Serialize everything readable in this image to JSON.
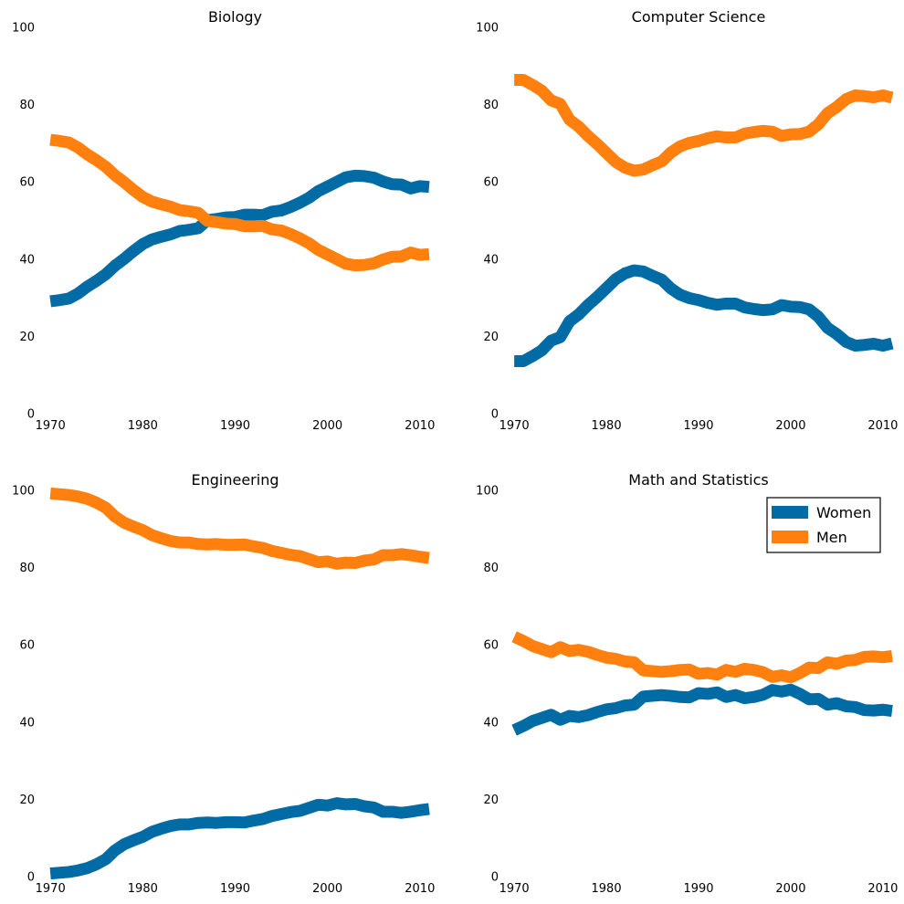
{
  "chart_data": [
    {
      "type": "line",
      "title": "Biology",
      "x": [
        1970,
        1971,
        1972,
        1973,
        1974,
        1975,
        1976,
        1977,
        1978,
        1979,
        1980,
        1981,
        1982,
        1983,
        1984,
        1985,
        1986,
        1987,
        1988,
        1989,
        1990,
        1991,
        1992,
        1993,
        1994,
        1995,
        1996,
        1997,
        1998,
        1999,
        2000,
        2001,
        2002,
        2003,
        2004,
        2005,
        2006,
        2007,
        2008,
        2009,
        2010,
        2011
      ],
      "ylim": [
        0,
        100
      ],
      "xlim": [
        1968.5,
        2011.5
      ],
      "xticks": [
        1970,
        1980,
        1990,
        2000,
        2010
      ],
      "yticks": [
        0,
        20,
        40,
        60,
        80,
        100
      ],
      "grid": false,
      "series": [
        {
          "name": "Women",
          "color": "#006BA4",
          "values": [
            29.1,
            29.4,
            29.8,
            31.1,
            32.9,
            34.4,
            36.1,
            38.3,
            40.1,
            42.1,
            43.9,
            45.1,
            45.8,
            46.4,
            47.3,
            47.6,
            48.0,
            50.1,
            50.4,
            50.8,
            50.9,
            51.5,
            51.5,
            51.4,
            52.3,
            52.6,
            53.5,
            54.6,
            55.9,
            57.6,
            58.8,
            60.0,
            61.2,
            61.6,
            61.5,
            61.1,
            60.1,
            59.4,
            59.3,
            58.3,
            58.9,
            58.7
          ]
        },
        {
          "name": "Men",
          "color": "#FF800E",
          "values": [
            70.9,
            70.6,
            70.2,
            68.9,
            67.1,
            65.6,
            63.9,
            61.7,
            59.9,
            57.9,
            56.1,
            54.9,
            54.2,
            53.6,
            52.7,
            52.4,
            52.0,
            49.9,
            49.6,
            49.2,
            49.1,
            48.5,
            48.5,
            48.6,
            47.7,
            47.4,
            46.5,
            45.4,
            44.1,
            42.4,
            41.2,
            40.0,
            38.8,
            38.4,
            38.5,
            38.9,
            39.9,
            40.6,
            40.7,
            41.7,
            41.1,
            41.3
          ]
        }
      ]
    },
    {
      "type": "line",
      "title": "Computer Science",
      "x": [
        1970,
        1971,
        1972,
        1973,
        1974,
        1975,
        1976,
        1977,
        1978,
        1979,
        1980,
        1981,
        1982,
        1983,
        1984,
        1985,
        1986,
        1987,
        1988,
        1989,
        1990,
        1991,
        1992,
        1993,
        1994,
        1995,
        1996,
        1997,
        1998,
        1999,
        2000,
        2001,
        2002,
        2003,
        2004,
        2005,
        2006,
        2007,
        2008,
        2009,
        2010,
        2011
      ],
      "ylim": [
        0,
        100
      ],
      "xlim": [
        1968.5,
        2011.5
      ],
      "xticks": [
        1970,
        1980,
        1990,
        2000,
        2010
      ],
      "yticks": [
        0,
        20,
        40,
        60,
        80,
        100
      ],
      "grid": false,
      "series": [
        {
          "name": "Women",
          "color": "#006BA4",
          "values": [
            13.6,
            13.6,
            14.9,
            16.4,
            18.9,
            19.8,
            23.9,
            25.7,
            28.1,
            30.2,
            32.5,
            34.8,
            36.3,
            37.1,
            36.8,
            35.7,
            34.7,
            32.4,
            30.8,
            29.9,
            29.4,
            28.7,
            28.2,
            28.5,
            28.5,
            27.5,
            27.1,
            26.8,
            27.0,
            28.1,
            27.7,
            27.6,
            27.0,
            25.1,
            22.2,
            20.6,
            18.6,
            17.6,
            17.8,
            18.1,
            17.6,
            18.2
          ]
        },
        {
          "name": "Men",
          "color": "#FF800E",
          "values": [
            86.4,
            86.4,
            85.1,
            83.6,
            81.1,
            80.2,
            76.1,
            74.3,
            71.9,
            69.8,
            67.5,
            65.2,
            63.7,
            62.9,
            63.2,
            64.3,
            65.3,
            67.6,
            69.2,
            70.1,
            70.6,
            71.3,
            71.8,
            71.5,
            71.5,
            72.5,
            72.9,
            73.2,
            73.0,
            71.9,
            72.3,
            72.4,
            73.0,
            74.9,
            77.8,
            79.4,
            81.4,
            82.4,
            82.2,
            81.9,
            82.4,
            81.8
          ]
        }
      ]
    },
    {
      "type": "line",
      "title": "Engineering",
      "x": [
        1970,
        1971,
        1972,
        1973,
        1974,
        1975,
        1976,
        1977,
        1978,
        1979,
        1980,
        1981,
        1982,
        1983,
        1984,
        1985,
        1986,
        1987,
        1988,
        1989,
        1990,
        1991,
        1992,
        1993,
        1994,
        1995,
        1996,
        1997,
        1998,
        1999,
        2000,
        2001,
        2002,
        2003,
        2004,
        2005,
        2006,
        2007,
        2008,
        2009,
        2010,
        2011
      ],
      "ylim": [
        0,
        100
      ],
      "xlim": [
        1968.5,
        2011.5
      ],
      "xticks": [
        1970,
        1980,
        1990,
        2000,
        2010
      ],
      "yticks": [
        0,
        20,
        40,
        60,
        80,
        100
      ],
      "grid": false,
      "series": [
        {
          "name": "Women",
          "color": "#006BA4",
          "values": [
            0.8,
            1.0,
            1.2,
            1.6,
            2.2,
            3.2,
            4.5,
            6.8,
            8.4,
            9.4,
            10.3,
            11.6,
            12.4,
            13.1,
            13.5,
            13.5,
            13.9,
            14.0,
            13.9,
            14.1,
            14.1,
            14.0,
            14.5,
            14.9,
            15.7,
            16.2,
            16.7,
            17.0,
            17.8,
            18.6,
            18.4,
            19.0,
            18.7,
            18.8,
            18.2,
            17.9,
            16.8,
            16.8,
            16.5,
            16.8,
            17.2,
            17.5
          ]
        },
        {
          "name": "Men",
          "color": "#FF800E",
          "values": [
            99.2,
            99.0,
            98.8,
            98.4,
            97.8,
            96.8,
            95.5,
            93.2,
            91.6,
            90.6,
            89.7,
            88.4,
            87.6,
            86.9,
            86.5,
            86.5,
            86.1,
            86.0,
            86.1,
            85.9,
            85.9,
            86.0,
            85.5,
            85.1,
            84.3,
            83.8,
            83.3,
            83.0,
            82.2,
            81.4,
            81.6,
            81.0,
            81.3,
            81.2,
            81.8,
            82.1,
            83.2,
            83.2,
            83.5,
            83.2,
            82.8,
            82.5
          ]
        }
      ]
    },
    {
      "type": "line",
      "title": "Math and Statistics",
      "x": [
        1970,
        1971,
        1972,
        1973,
        1974,
        1975,
        1976,
        1977,
        1978,
        1979,
        1980,
        1981,
        1982,
        1983,
        1984,
        1985,
        1986,
        1987,
        1988,
        1989,
        1990,
        1991,
        1992,
        1993,
        1994,
        1995,
        1996,
        1997,
        1998,
        1999,
        2000,
        2001,
        2002,
        2003,
        2004,
        2005,
        2006,
        2007,
        2008,
        2009,
        2010,
        2011
      ],
      "ylim": [
        0,
        100
      ],
      "xlim": [
        1968.5,
        2011.5
      ],
      "xticks": [
        1970,
        1980,
        1990,
        2000,
        2010
      ],
      "yticks": [
        0,
        20,
        40,
        60,
        80,
        100
      ],
      "grid": false,
      "legend": {
        "placement": "top-right",
        "entries": [
          "Women",
          "Men"
        ]
      },
      "series": [
        {
          "name": "Women",
          "color": "#006BA4",
          "values": [
            37.9,
            39.0,
            40.3,
            41.1,
            41.9,
            40.6,
            41.6,
            41.3,
            41.8,
            42.6,
            43.3,
            43.6,
            44.3,
            44.5,
            46.6,
            46.8,
            47.0,
            46.8,
            46.5,
            46.4,
            47.5,
            47.3,
            47.7,
            46.5,
            47.0,
            46.2,
            46.5,
            47.1,
            48.3,
            47.9,
            48.4,
            47.3,
            45.9,
            46.0,
            44.5,
            44.9,
            44.1,
            43.9,
            43.1,
            43.0,
            43.2,
            42.9
          ]
        },
        {
          "name": "Men",
          "color": "#FF800E",
          "values": [
            62.1,
            61.0,
            59.7,
            58.9,
            58.1,
            59.4,
            58.4,
            58.7,
            58.2,
            57.4,
            56.7,
            56.4,
            55.7,
            55.5,
            53.4,
            53.2,
            53.0,
            53.2,
            53.5,
            53.6,
            52.5,
            52.7,
            52.3,
            53.5,
            53.0,
            53.8,
            53.5,
            52.9,
            51.7,
            52.1,
            51.6,
            52.7,
            54.1,
            54.0,
            55.5,
            55.1,
            55.9,
            56.1,
            56.9,
            57.0,
            56.8,
            57.1
          ]
        }
      ]
    }
  ]
}
